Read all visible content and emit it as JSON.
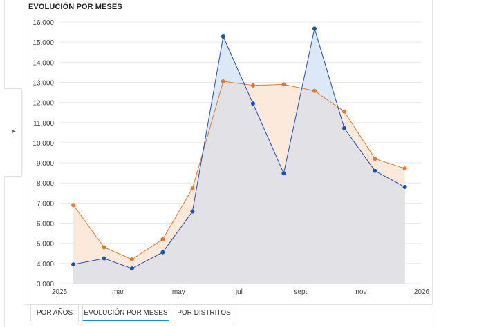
{
  "title": "EVOLUCIÓN POR MESES",
  "tabs": [
    {
      "label": "POR AÑOS",
      "active": false
    },
    {
      "label": "EVOLUCIÓN POR MESES",
      "active": true
    },
    {
      "label": "POR DISTRITOS",
      "active": false
    }
  ],
  "side_toggle_icon": "chevron-right-icon",
  "colors": {
    "series_blue": "#1f4fb0",
    "series_orange": "#e07a2c",
    "fill_blue": "#dce8f5",
    "fill_orange": "#fbeadc",
    "fill_overlap": "#e2e2e6",
    "grid": "#e8e8e8",
    "active_tab_underline": "#1a8cd8"
  },
  "chart_data": {
    "type": "area",
    "title": "EVOLUCIÓN POR MESES",
    "xlabel": "",
    "ylabel": "",
    "ylim": [
      3000,
      16000
    ],
    "y_ticks": [
      "3.000",
      "4.000",
      "5.000",
      "6.000",
      "7.000",
      "8.000",
      "9.000",
      "10.000",
      "11.000",
      "12.000",
      "13.000",
      "14.000",
      "15.000",
      "16.000"
    ],
    "x_tick_labels": [
      "2025",
      "mar",
      "may",
      "jul",
      "sept",
      "nov",
      "2026"
    ],
    "x_range": [
      "2025-01-01",
      "2026-01-01"
    ],
    "grid": true,
    "legend": false,
    "categories": [
      "2025-01",
      "2025-02",
      "2025-03",
      "2025-04",
      "2025-05",
      "2025-06",
      "2025-07",
      "2025-08",
      "2025-09",
      "2025-10",
      "2025-11",
      "2025-12"
    ],
    "series": [
      {
        "color": "#1f4fb0",
        "values": [
          3950,
          4250,
          3750,
          4550,
          6580,
          15280,
          11950,
          8480,
          15680,
          10720,
          8600,
          7800
        ]
      },
      {
        "color": "#e07a2c",
        "values": [
          6900,
          4800,
          4200,
          5200,
          7730,
          13050,
          12850,
          12900,
          12580,
          11550,
          9200,
          8720
        ]
      }
    ]
  }
}
